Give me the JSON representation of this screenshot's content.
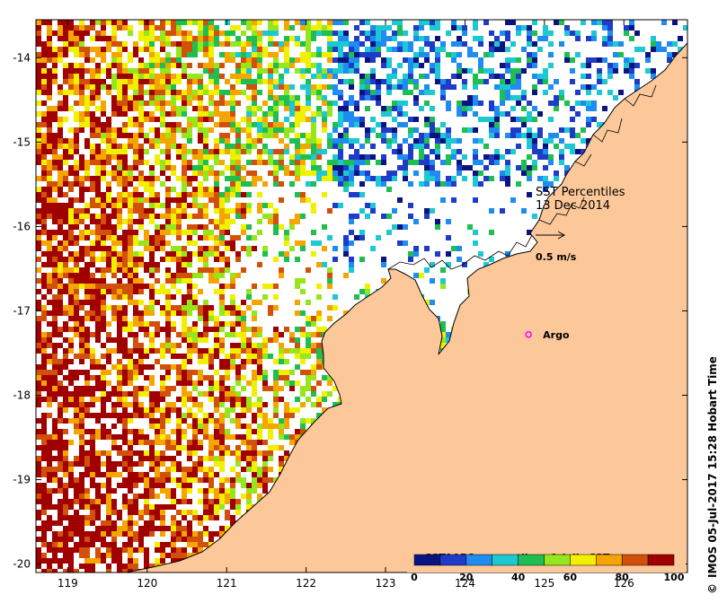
{
  "map": {
    "title": "SST Percentiles",
    "date": "13 Dec 2014",
    "vector_scale_label": "0.5 m/s",
    "argo_label": "Argo",
    "credit": "IMOS 05-Jul-2017 15:28 Hobart Time",
    "copyright_symbol": "©",
    "x_axis": {
      "min": 118.6,
      "max": 126.8,
      "ticks": [
        119,
        120,
        121,
        122,
        123,
        124,
        125,
        126
      ],
      "tick_labels": [
        "119",
        "120",
        "121",
        "122",
        "123",
        "124",
        "125",
        "126"
      ]
    },
    "y_axis": {
      "min": -20.1,
      "max": -13.55,
      "ticks": [
        -14,
        -15,
        -16,
        -17,
        -18,
        -19,
        -20
      ],
      "tick_labels": [
        "-14",
        "-15",
        "-16",
        "-17",
        "-18",
        "-19",
        "-20"
      ]
    },
    "argo_position": {
      "lon": 124.8,
      "lat": -17.28
    },
    "colors": {
      "land": "#fcc89a",
      "argo": "#ff00ff",
      "ocean_nodata": "#ffffff"
    },
    "colorbar": {
      "title": "SSTAARS percentiles of daily SST",
      "range": [
        0,
        100
      ],
      "tick_values": [
        0,
        20,
        40,
        60,
        80,
        100
      ],
      "tick_labels": [
        "0",
        "20",
        "40",
        "60",
        "80",
        "100"
      ],
      "colors": [
        "#0a1480",
        "#1e3cc8",
        "#1e8cf0",
        "#1ec8d2",
        "#1ebe50",
        "#96e61e",
        "#f0f000",
        "#f5a500",
        "#d2500a",
        "#a00000"
      ]
    }
  }
}
